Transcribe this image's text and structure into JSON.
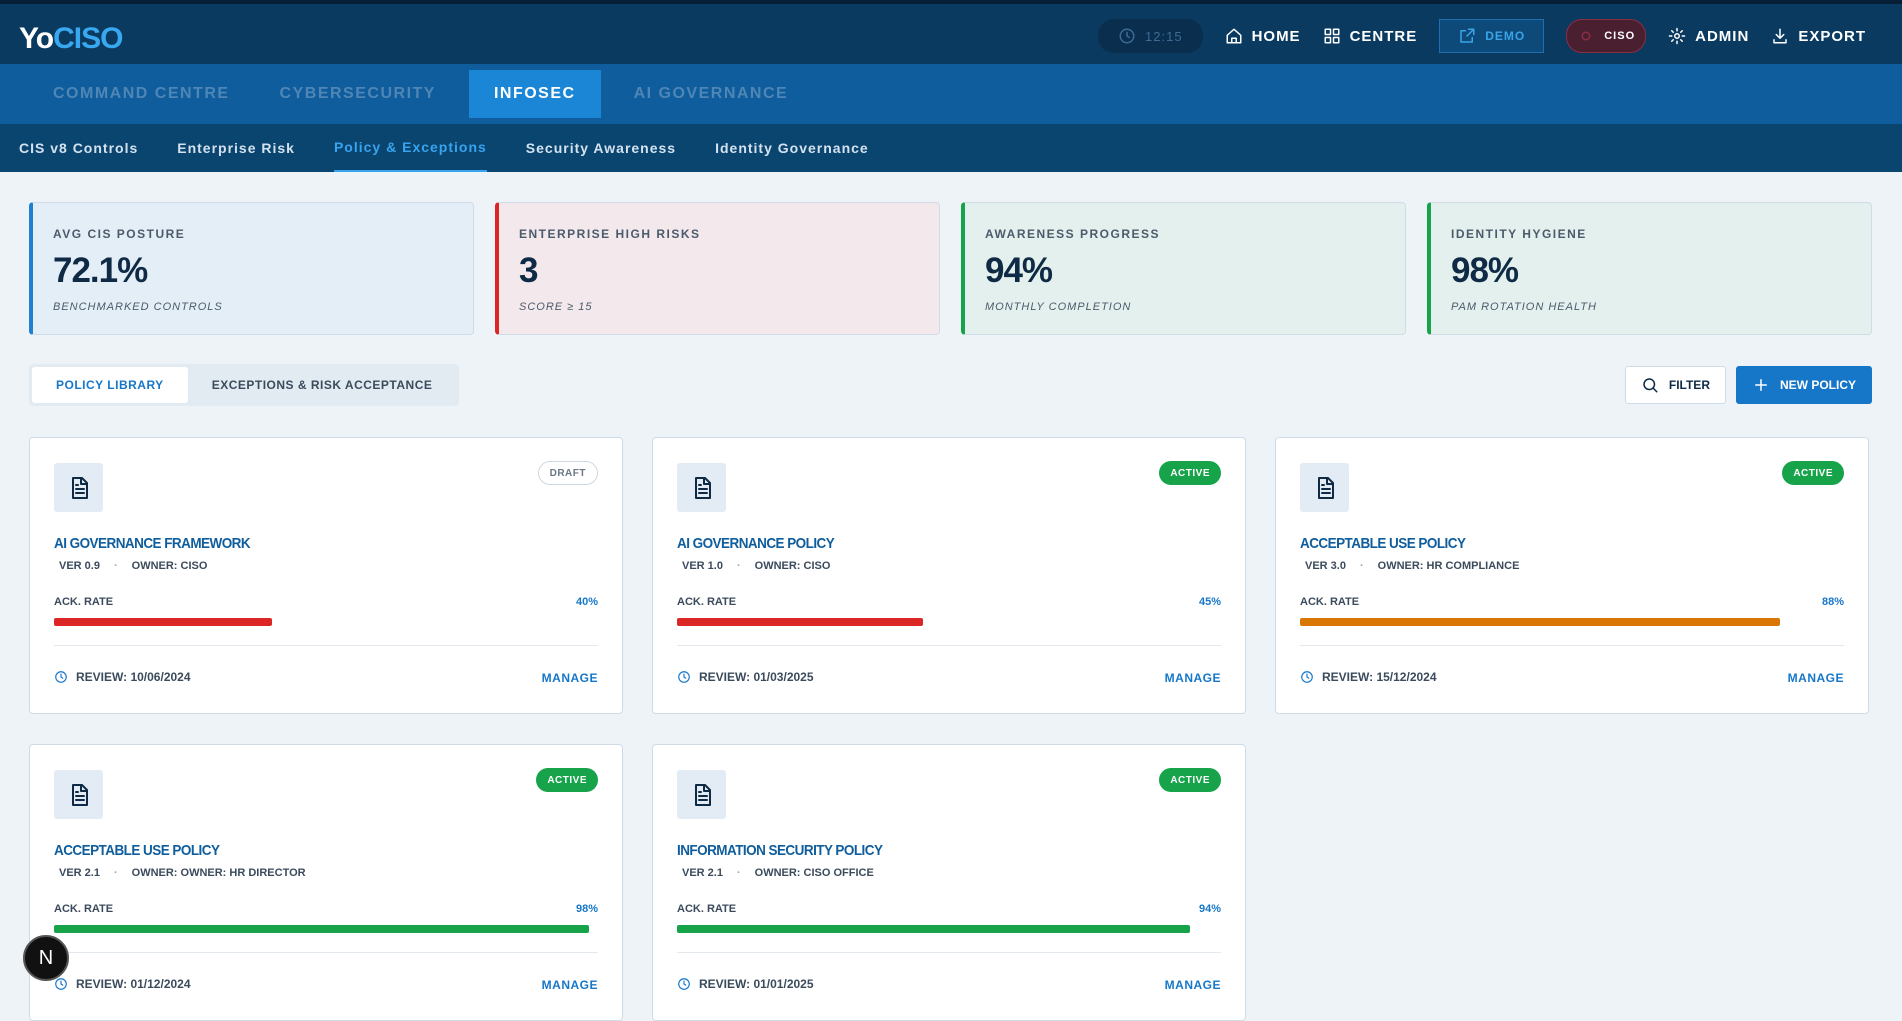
{
  "header": {
    "logo_a": "Yo",
    "logo_b": "CISO",
    "clock": "12:15",
    "nav": [
      "HOME",
      "CENTRE",
      "DEMO",
      "CISO",
      "ADMIN",
      "EXPORT"
    ]
  },
  "main_tabs": [
    "COMMAND CENTRE",
    "CYBERSECURITY",
    "INFOSEC",
    "AI GOVERNANCE"
  ],
  "sub_tabs": [
    "CIS v8 Controls",
    "Enterprise Risk",
    "Policy & Exceptions",
    "Security Awareness",
    "Identity Governance"
  ],
  "kpis": [
    {
      "label": "AVG CIS POSTURE",
      "value": "72.1%",
      "note": "BENCHMARKED CONTROLS"
    },
    {
      "label": "ENTERPRISE HIGH RISKS",
      "value": "3",
      "note": "SCORE ≥ 15"
    },
    {
      "label": "AWARENESS PROGRESS",
      "value": "94%",
      "note": "MONTHLY COMPLETION"
    },
    {
      "label": "IDENTITY HYGIENE",
      "value": "98%",
      "note": "PAM ROTATION HEALTH"
    }
  ],
  "view_tabs": [
    "POLICY LIBRARY",
    "EXCEPTIONS & RISK ACCEPTANCE"
  ],
  "actions": [
    "FILTER",
    "NEW POLICY"
  ],
  "policies": [
    {
      "status": "DRAFT",
      "title": "AI GOVERNANCE FRAMEWORK",
      "version": "VER 0.9",
      "owner": "OWNER: CISO",
      "ack_text": "ACK. RATE",
      "ack_rate": 40,
      "ack_rate_label": "40%",
      "color": "#dc2626",
      "review": "REVIEW: 10/06/2024",
      "action": "MANAGE"
    },
    {
      "status": "ACTIVE",
      "title": "AI GOVERNANCE POLICY",
      "version": "VER 1.0",
      "owner": "OWNER: CISO",
      "ack_text": "ACK. RATE",
      "ack_rate": 45,
      "ack_rate_label": "45%",
      "color": "#dc2626",
      "review": "REVIEW: 01/03/2025",
      "action": "MANAGE"
    },
    {
      "status": "ACTIVE",
      "title": "ACCEPTABLE USE POLICY",
      "version": "VER 3.0",
      "owner": "OWNER: HR COMPLIANCE",
      "ack_text": "ACK. RATE",
      "ack_rate": 88,
      "ack_rate_label": "88%",
      "color": "#d97706",
      "review": "REVIEW: 15/12/2024",
      "action": "MANAGE"
    },
    {
      "status": "ACTIVE",
      "title": "ACCEPTABLE USE POLICY",
      "version": "VER 2.1",
      "owner": "OWNER: OWNER: HR DIRECTOR",
      "ack_text": "ACK. RATE",
      "ack_rate": 98,
      "ack_rate_label": "98%",
      "color": "#16a34a",
      "review": "REVIEW: 01/12/2024",
      "action": "MANAGE"
    },
    {
      "status": "ACTIVE",
      "title": "INFORMATION SECURITY POLICY",
      "version": "VER 2.1",
      "owner": "OWNER: CISO OFFICE",
      "ack_text": "ACK. RATE",
      "ack_rate": 94,
      "ack_rate_label": "94%",
      "color": "#16a34a",
      "review": "REVIEW: 01/01/2025",
      "action": "MANAGE"
    }
  ],
  "dev_badge": "N"
}
